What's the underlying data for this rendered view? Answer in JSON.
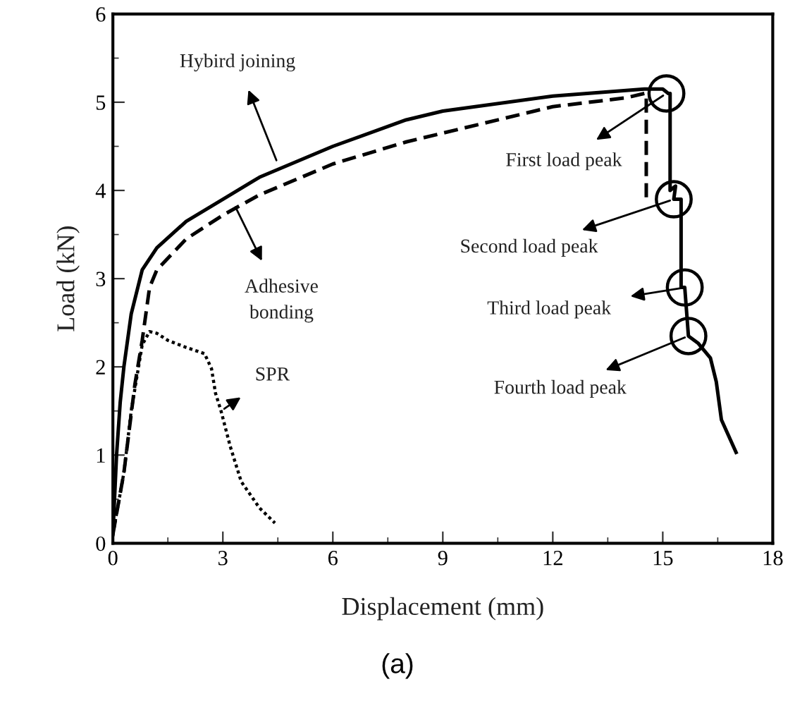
{
  "chart_data": {
    "type": "line",
    "xlabel": "Displacement (mm)",
    "ylabel": "Load (kN)",
    "xlim": [
      0,
      18
    ],
    "ylim": [
      0,
      6
    ],
    "xticks": [
      0,
      3,
      6,
      9,
      12,
      15,
      18
    ],
    "yticks": [
      0,
      1,
      2,
      3,
      4,
      5,
      6
    ],
    "grid": false,
    "legend": false,
    "marker": "none",
    "series": [
      {
        "color": "#000000",
        "line_style": "solid",
        "x": [
          0,
          0.1,
          0.2,
          0.3,
          0.5,
          0.8,
          1.2,
          2,
          3,
          4,
          6,
          8,
          9,
          12,
          14.5,
          15.0,
          15.15,
          15.2,
          15.2,
          15.35,
          15.3,
          15.5,
          15.5,
          15.6,
          15.7,
          15.96,
          16.3,
          16.46,
          16.6,
          17.0
        ],
        "values": [
          0.1,
          1.0,
          1.6,
          2.0,
          2.6,
          3.1,
          3.35,
          3.65,
          3.9,
          4.15,
          4.5,
          4.8,
          4.9,
          5.07,
          5.15,
          5.15,
          5.1,
          5.1,
          4.0,
          4.05,
          3.9,
          3.9,
          2.9,
          2.9,
          2.35,
          2.27,
          2.1,
          1.83,
          1.4,
          1.03
        ]
      },
      {
        "color": "#000000",
        "line_style": "dashed",
        "x": [
          0,
          0.3,
          0.6,
          0.8,
          1.0,
          1.2,
          2,
          3,
          4,
          6,
          8,
          9,
          12,
          14,
          14.5,
          14.55,
          14.55
        ],
        "values": [
          0.1,
          0.8,
          1.8,
          2.3,
          2.9,
          3.1,
          3.45,
          3.72,
          3.95,
          4.3,
          4.55,
          4.65,
          4.95,
          5.05,
          5.1,
          5.1,
          3.85
        ]
      },
      {
        "color": "#000000",
        "line_style": "dotted",
        "x": [
          0,
          0.3,
          0.5,
          0.8,
          1.0,
          1.2,
          1.5,
          2,
          2.5,
          2.69,
          2.8,
          2.95,
          3.2,
          3.5,
          4.0,
          4.42
        ],
        "values": [
          0.1,
          0.8,
          1.5,
          2.25,
          2.4,
          2.38,
          2.3,
          2.22,
          2.15,
          1.98,
          1.7,
          1.5,
          1.1,
          0.7,
          0.4,
          0.23
        ]
      }
    ],
    "annotations": [
      {
        "text": "Hybird joining",
        "x": 4.5,
        "y": 4.3
      },
      {
        "text": "Adhesive\nbonding",
        "x": 3.3,
        "y": 3.85
      },
      {
        "text": "SPR",
        "x": 2.95,
        "y": 1.5
      },
      {
        "text": "First load peak",
        "x": 15.1,
        "y": 5.1
      },
      {
        "text": "Second load peak",
        "x": 15.3,
        "y": 3.9
      },
      {
        "text": "Third load peak",
        "x": 15.6,
        "y": 2.9
      },
      {
        "text": "Fourth load peak",
        "x": 15.7,
        "y": 2.35
      },
      "(a)"
    ]
  }
}
